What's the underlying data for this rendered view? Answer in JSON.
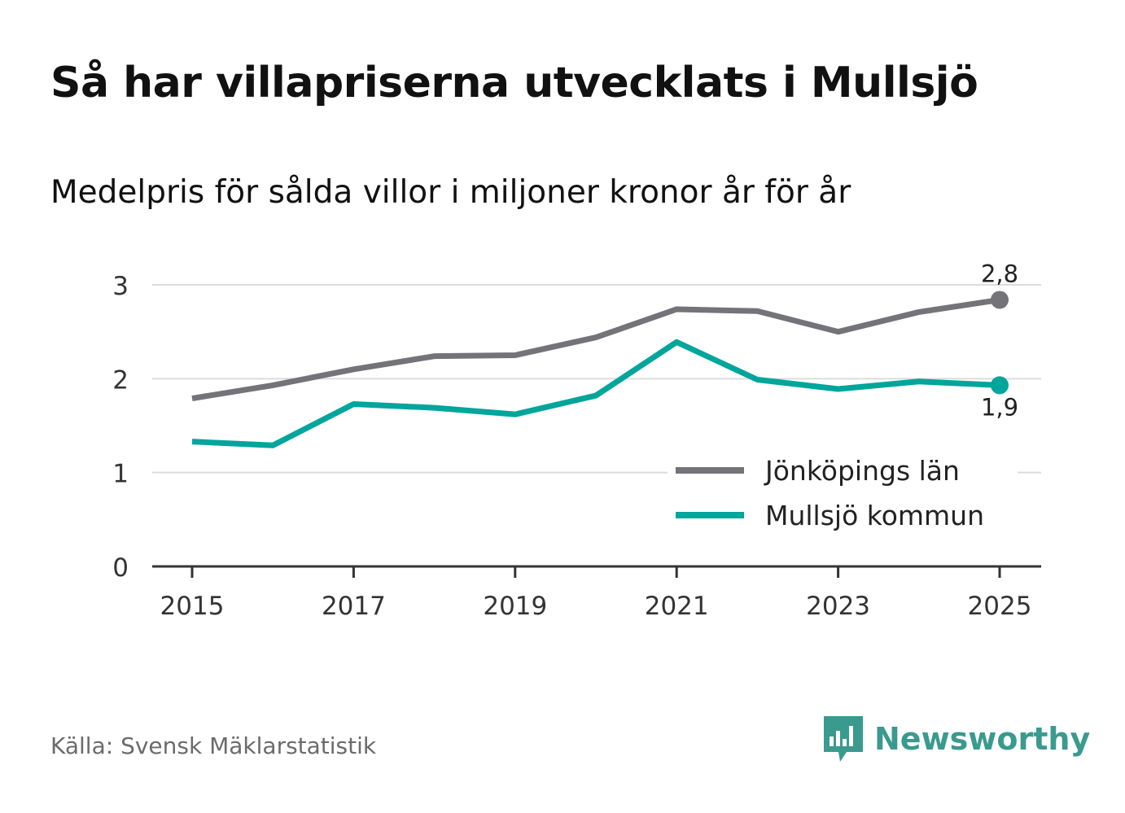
{
  "header": {
    "title": "Så har villapriserna utvecklats i Mullsjö",
    "subtitle": "Medelpris för sålda villor i miljoner kronor år för år"
  },
  "footer": {
    "source": "Källa: Svensk Mäklarstatistik",
    "brand": "Newsworthy",
    "brand_icon": "bar-chart-speech-bubble-icon"
  },
  "colors": {
    "jonkoping": "#74737a",
    "mullsjo": "#00a59b",
    "grid": "#dcdcdc",
    "axis": "#333333",
    "brand": "#3a9a8e"
  },
  "chart_data": {
    "type": "line",
    "title": "Så har villapriserna utvecklats i Mullsjö",
    "subtitle": "Medelpris för sålda villor i miljoner kronor år för år",
    "xlabel": "",
    "ylabel": "",
    "x": [
      2015,
      2016,
      2017,
      2018,
      2019,
      2020,
      2021,
      2022,
      2023,
      2024,
      2025
    ],
    "x_ticks": [
      "2015",
      "2017",
      "2019",
      "2021",
      "2023",
      "2025"
    ],
    "y_ticks": [
      "0",
      "1",
      "2",
      "3"
    ],
    "ylim": [
      0,
      3.3
    ],
    "xlim": [
      2014.5,
      2025.5
    ],
    "grid": true,
    "legend_position": "bottom-right",
    "series": [
      {
        "name": "Jönköpings län",
        "key": "jonkoping",
        "values": [
          1.79,
          1.93,
          2.1,
          2.24,
          2.25,
          2.44,
          2.74,
          2.72,
          2.5,
          2.71,
          2.84
        ],
        "end_label": "2,8"
      },
      {
        "name": "Mullsjö kommun",
        "key": "mullsjo",
        "values": [
          1.33,
          1.29,
          1.73,
          1.69,
          1.62,
          1.82,
          2.39,
          1.99,
          1.89,
          1.97,
          1.93
        ],
        "end_label": "1,9"
      }
    ]
  }
}
